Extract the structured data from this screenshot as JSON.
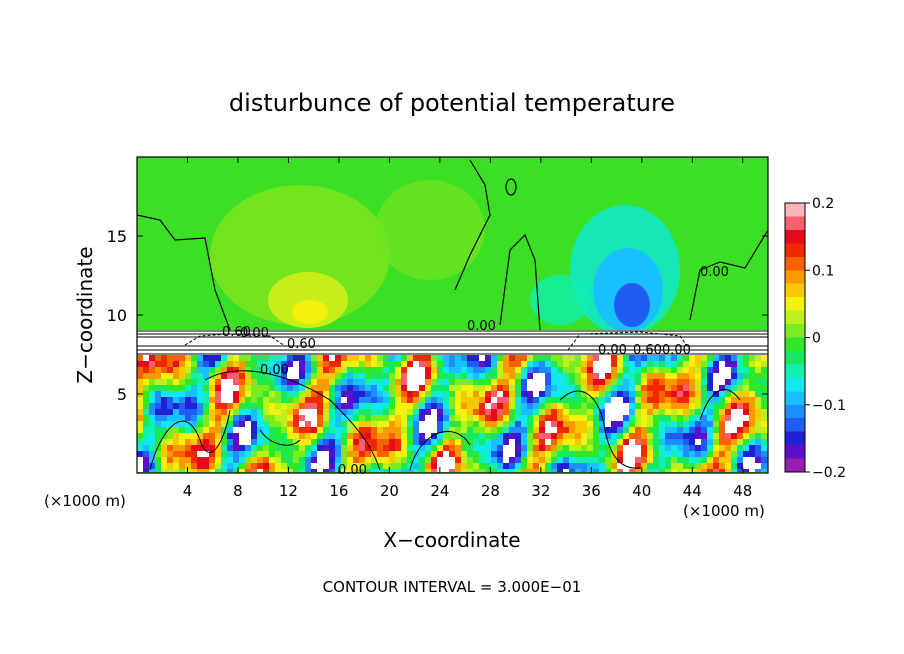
{
  "chart_data": {
    "type": "heatmap",
    "title": "disturbunce of potential temperature",
    "xlabel": "X−coordinate",
    "ylabel": "Z−coordinate",
    "x_unit_left": "(×1000 m)",
    "x_unit_right": "(×1000 m)",
    "xlim": [
      0,
      50
    ],
    "ylim": [
      0,
      20
    ],
    "x_ticks": [
      4,
      8,
      12,
      16,
      20,
      24,
      28,
      32,
      36,
      40,
      44,
      48
    ],
    "y_ticks": [
      5,
      10,
      15
    ],
    "colorbar": {
      "range": [
        -0.2,
        0.2
      ],
      "tick_values": [
        0.2,
        0.1,
        0,
        -0.1,
        -0.2
      ],
      "tick_labels": [
        "0.2",
        "0.1",
        "0",
        "−0.1",
        "−0.2"
      ],
      "colors": [
        "#9a1fb0",
        "#5b10c8",
        "#2020d6",
        "#1f5cf2",
        "#1f8cff",
        "#19c0ff",
        "#12e8f0",
        "#10f0b0",
        "#18e860",
        "#2fe82a",
        "#7bec20",
        "#bef01c",
        "#f2f20c",
        "#f8c800",
        "#fa9a00",
        "#f96200",
        "#f02a00",
        "#e60a1c",
        "#f86070",
        "#ffb4bc"
      ]
    },
    "contour_labels": [
      "0.00",
      "0.00",
      "0.00",
      "0.00",
      "0.60",
      "0.60",
      "0.60",
      "0.00",
      "0.00",
      "0.00"
    ],
    "footer": "CONTOUR INTERVAL = 3.000E−01"
  }
}
